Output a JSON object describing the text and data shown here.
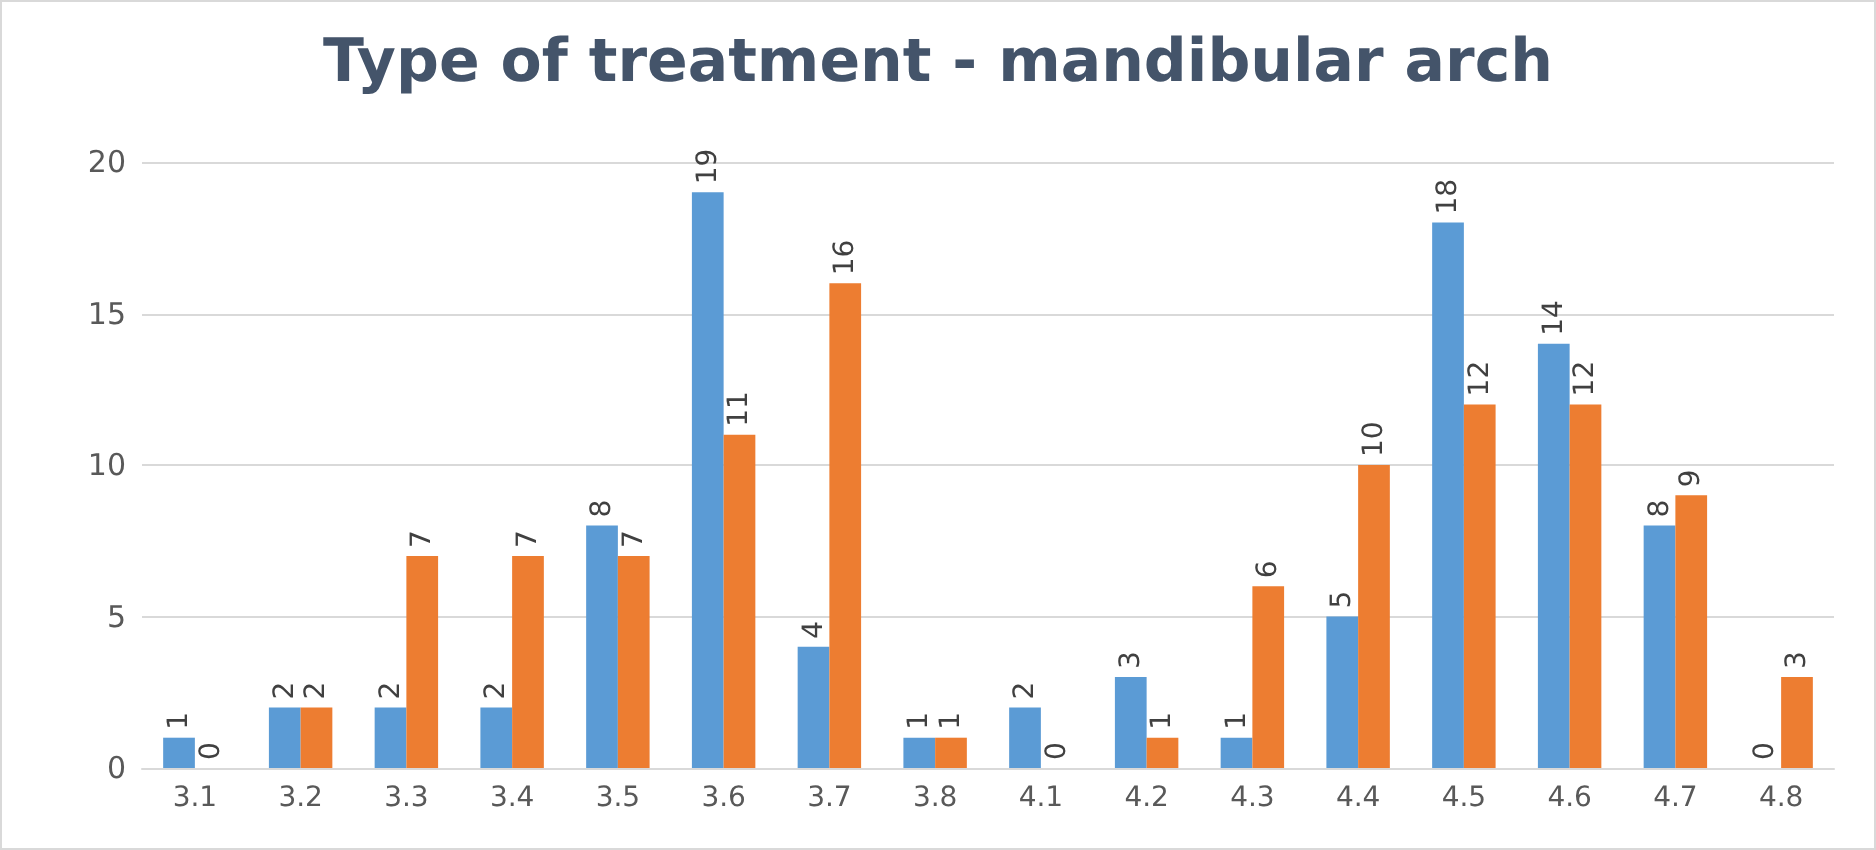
{
  "chart_data": {
    "type": "bar",
    "title": "Type of treatment - mandibular arch",
    "categories": [
      "3.1",
      "3.2",
      "3.3",
      "3.4",
      "3.5",
      "3.6",
      "3.7",
      "3.8",
      "4.1",
      "4.2",
      "4.3",
      "4.4",
      "4.5",
      "4.6",
      "4.7",
      "4.8"
    ],
    "series": [
      {
        "color": "#5b9bd5",
        "values": [
          1,
          2,
          2,
          2,
          8,
          19,
          4,
          1,
          2,
          3,
          1,
          5,
          18,
          14,
          8,
          0
        ]
      },
      {
        "color": "#ed7d31",
        "values": [
          0,
          2,
          7,
          7,
          7,
          11,
          16,
          1,
          0,
          1,
          6,
          10,
          12,
          12,
          9,
          3
        ]
      }
    ],
    "ylim": [
      0,
      20
    ],
    "yticks": [
      0,
      5,
      10,
      15,
      20
    ],
    "grid": "y",
    "data_labels": true
  }
}
